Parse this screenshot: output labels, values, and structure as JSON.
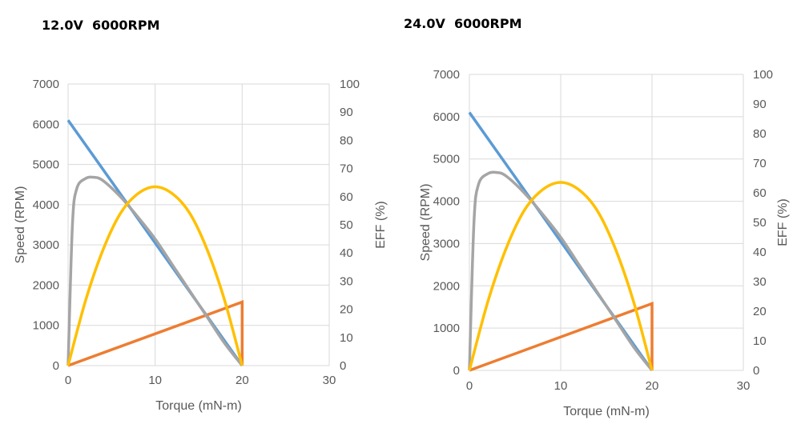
{
  "chart_data": [
    {
      "type": "line",
      "title": "12.0V  6000RPM",
      "xlabel": "Torque (mN-m)",
      "ylabel": "Speed (RPM)",
      "y2label": "EFF (%)",
      "xlim": [
        0,
        30
      ],
      "ylim": [
        0,
        7000
      ],
      "y2lim": [
        0,
        100
      ],
      "xticks": [
        0,
        10,
        20,
        30
      ],
      "yticks": [
        0,
        1000,
        2000,
        3000,
        4000,
        5000,
        6000,
        7000
      ],
      "y2ticks": [
        0,
        10,
        20,
        30,
        40,
        50,
        60,
        70,
        80,
        90,
        100
      ],
      "grid": true,
      "colors": {
        "speed": "#5b9bd5",
        "current": "#ed7d31",
        "power": "#a5a5a5",
        "efficiency": "#ffc000"
      },
      "series": [
        {
          "axis": "left",
          "x": [
            0,
            20
          ],
          "values": [
            6100,
            0
          ]
        },
        {
          "axis": "left",
          "x": [
            0,
            20,
            20
          ],
          "values": [
            0,
            1580,
            0
          ]
        },
        {
          "axis": "left",
          "x": [
            0,
            0.5,
            1,
            2,
            3,
            4,
            6,
            8,
            10,
            12,
            14,
            16,
            18,
            20
          ],
          "values": [
            0,
            3500,
            4400,
            4650,
            4680,
            4600,
            4200,
            3700,
            3150,
            2500,
            1850,
            1200,
            550,
            0
          ]
        },
        {
          "axis": "right",
          "x": [
            0,
            2,
            4,
            6,
            8,
            10,
            12,
            14,
            16,
            18,
            20
          ],
          "values": [
            0,
            23,
            41,
            54,
            61,
            63.5,
            61,
            54,
            41,
            23,
            0
          ]
        }
      ]
    },
    {
      "type": "line",
      "title": "24.0V  6000RPM",
      "xlabel": "Torque (mN-m)",
      "ylabel": "Speed (RPM)",
      "y2label": "EFF (%)",
      "xlim": [
        0,
        30
      ],
      "ylim": [
        0,
        7000
      ],
      "y2lim": [
        0,
        100
      ],
      "xticks": [
        0,
        10,
        20,
        30
      ],
      "yticks": [
        0,
        1000,
        2000,
        3000,
        4000,
        5000,
        6000,
        7000
      ],
      "y2ticks": [
        0,
        10,
        20,
        30,
        40,
        50,
        60,
        70,
        80,
        90,
        100
      ],
      "grid": true,
      "colors": {
        "speed": "#5b9bd5",
        "current": "#ed7d31",
        "power": "#a5a5a5",
        "efficiency": "#ffc000"
      },
      "series": [
        {
          "axis": "left",
          "x": [
            0,
            20
          ],
          "values": [
            6100,
            0
          ]
        },
        {
          "axis": "left",
          "x": [
            0,
            20,
            20
          ],
          "values": [
            0,
            1580,
            0
          ]
        },
        {
          "axis": "left",
          "x": [
            0,
            0.5,
            1,
            2,
            3,
            4,
            6,
            8,
            10,
            12,
            14,
            16,
            18,
            20
          ],
          "values": [
            0,
            3500,
            4400,
            4650,
            4680,
            4600,
            4200,
            3700,
            3150,
            2500,
            1850,
            1200,
            550,
            0
          ]
        },
        {
          "axis": "right",
          "x": [
            0,
            2,
            4,
            6,
            8,
            10,
            12,
            14,
            16,
            18,
            20
          ],
          "values": [
            0,
            23,
            41,
            54,
            61,
            63.5,
            61,
            54,
            41,
            23,
            0
          ]
        }
      ]
    }
  ]
}
